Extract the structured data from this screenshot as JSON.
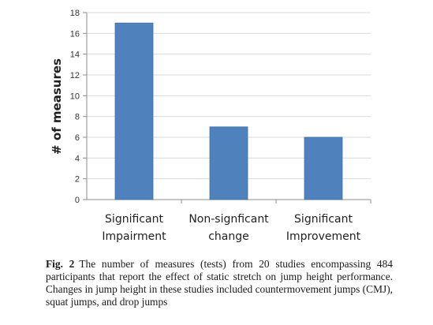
{
  "chart_data": {
    "type": "bar",
    "categories": [
      "Significant Impairment",
      "Non-signficant change",
      "Significant Improvement"
    ],
    "category_lines": [
      [
        "Significant",
        "Impairment"
      ],
      [
        "Non-signficant",
        "change"
      ],
      [
        "Significant",
        "Improvement"
      ]
    ],
    "values": [
      17,
      7,
      6
    ],
    "ylabel": "# of measures",
    "xlabel": "",
    "ylim": [
      0,
      18
    ],
    "yticks": [
      "0",
      "2",
      "4",
      "6",
      "8",
      "10",
      "12",
      "14",
      "16",
      "18"
    ],
    "grid": true,
    "legend": "none",
    "bar_color": "#4f81bd",
    "bar_stroke": "#3f6fa8",
    "grid_color": "#d9d9d9",
    "axis_color": "#8c8c8c"
  },
  "caption": {
    "label": "Fig. 2",
    "text": "The number of measures (tests) from 20 studies encompassing 484 participants that report the effect of static stretch on jump height performance. Changes in jump height in these studies included countermovement jumps (CMJ), squat jumps, and drop jumps"
  }
}
